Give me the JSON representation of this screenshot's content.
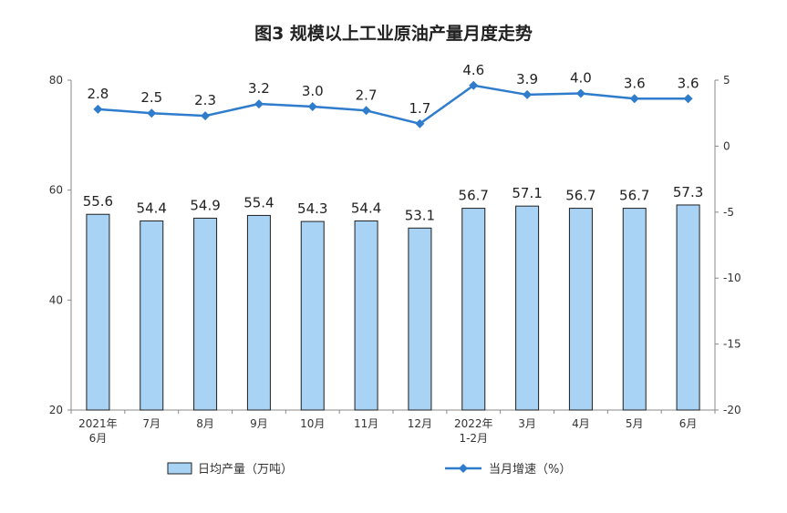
{
  "chart_data": {
    "type": "bar",
    "title": "图3  规模以上工业原油产量月度走势",
    "categories": [
      [
        "2021年",
        "6月"
      ],
      [
        "7月"
      ],
      [
        "8月"
      ],
      [
        "9月"
      ],
      [
        "10月"
      ],
      [
        "11月"
      ],
      [
        "12月"
      ],
      [
        "2022年",
        "1-2月"
      ],
      [
        "3月"
      ],
      [
        "4月"
      ],
      [
        "5月"
      ],
      [
        "6月"
      ]
    ],
    "series": [
      {
        "name": "日均产量（万吨）",
        "type": "bar",
        "axis": "left",
        "color": "#a9d3f5",
        "values": [
          55.6,
          54.4,
          54.9,
          55.4,
          54.3,
          54.4,
          53.1,
          56.7,
          57.1,
          56.7,
          56.7,
          57.3
        ]
      },
      {
        "name": "当月增速（%）",
        "type": "line",
        "axis": "right",
        "color": "#2f7ccc",
        "values": [
          2.8,
          2.5,
          2.3,
          3.2,
          3.0,
          2.7,
          1.7,
          4.6,
          3.9,
          4.0,
          3.6,
          3.6
        ]
      }
    ],
    "y_left": {
      "range": [
        20,
        80
      ],
      "ticks": [
        20,
        40,
        60,
        80
      ]
    },
    "y_right": {
      "range": [
        -20,
        5
      ],
      "ticks": [
        -20,
        -15,
        -10,
        -5,
        0,
        5
      ]
    },
    "grid": false,
    "legend_placement": "bottom"
  }
}
